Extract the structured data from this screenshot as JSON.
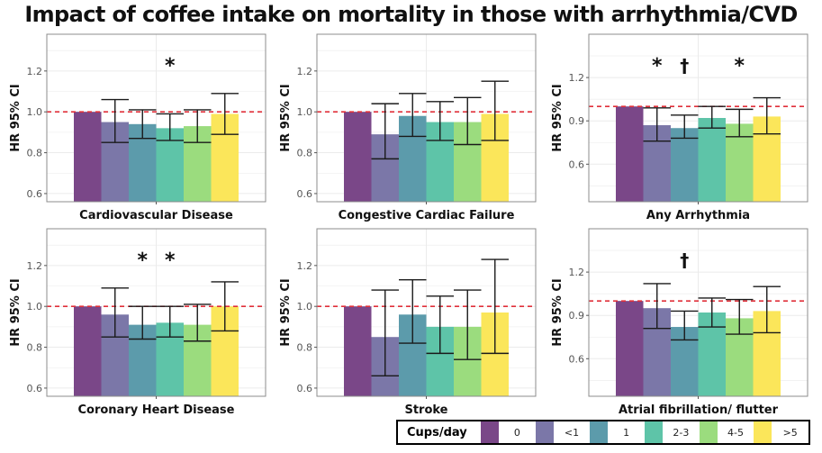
{
  "title": "Impact of coffee intake on mortality in those with arrhythmia/CVD",
  "legend": {
    "title": "Cups/day",
    "items": [
      {
        "label": "0",
        "color": "#7a4788"
      },
      {
        "label": "<1",
        "color": "#7b77a8"
      },
      {
        "label": "1",
        "color": "#5c9bab"
      },
      {
        "label": "2-3",
        "color": "#5ec4a8"
      },
      {
        "label": "4-5",
        "color": "#9bdc7e"
      },
      {
        "label": ">5",
        "color": "#fbe65a"
      }
    ]
  },
  "chart_data": [
    {
      "type": "bar",
      "title": "Cardiovascular Disease",
      "xlabel": "Cardiovascular Disease",
      "ylabel": "HR 95% CI",
      "ylim": [
        0.56,
        1.38
      ],
      "yticks": [
        0.6,
        0.8,
        1.0,
        1.2
      ],
      "ytick_labels": [
        "0.6",
        "0.8",
        "1.0",
        "1.2"
      ],
      "reference_line": 1.0,
      "categories": [
        "0",
        "<1",
        "1",
        "2-3",
        "4-5",
        ">5"
      ],
      "values": [
        1.0,
        0.95,
        0.94,
        0.92,
        0.93,
        0.99
      ],
      "ci_low": [
        null,
        0.85,
        0.87,
        0.86,
        0.85,
        0.89
      ],
      "ci_high": [
        null,
        1.06,
        1.01,
        0.99,
        1.01,
        1.09
      ],
      "annotations": [
        {
          "category": "2-3",
          "symbol": "*"
        }
      ]
    },
    {
      "type": "bar",
      "title": "Congestive Cardiac Failure",
      "xlabel": "Congestive Cardiac Failure",
      "ylabel": "HR 95% CI",
      "ylim": [
        0.56,
        1.38
      ],
      "yticks": [
        0.6,
        0.8,
        1.0,
        1.2
      ],
      "ytick_labels": [
        "0.6",
        "0.8",
        "1.0",
        "1.2"
      ],
      "reference_line": 1.0,
      "categories": [
        "0",
        "<1",
        "1",
        "2-3",
        "4-5",
        ">5"
      ],
      "values": [
        1.0,
        0.89,
        0.98,
        0.95,
        0.95,
        0.99
      ],
      "ci_low": [
        null,
        0.77,
        0.88,
        0.86,
        0.84,
        0.86
      ],
      "ci_high": [
        null,
        1.04,
        1.09,
        1.05,
        1.07,
        1.15
      ],
      "annotations": []
    },
    {
      "type": "bar",
      "title": "Any Arrhythmia",
      "xlabel": "Any Arrhythmia",
      "ylabel": "HR 95% CI",
      "ylim": [
        0.34,
        1.5
      ],
      "yticks": [
        0.6,
        0.9,
        1.2
      ],
      "ytick_labels": [
        "0.6",
        "0.9",
        "1.2"
      ],
      "reference_line": 1.0,
      "categories": [
        "0",
        "<1",
        "1",
        "2-3",
        "4-5",
        ">5"
      ],
      "values": [
        1.0,
        0.87,
        0.85,
        0.92,
        0.88,
        0.93
      ],
      "ci_low": [
        null,
        0.76,
        0.78,
        0.85,
        0.79,
        0.81
      ],
      "ci_high": [
        null,
        0.99,
        0.94,
        1.0,
        0.98,
        1.06
      ],
      "annotations": [
        {
          "category": "<1",
          "symbol": "*"
        },
        {
          "category": "1",
          "symbol": "†"
        },
        {
          "category": "4-5",
          "symbol": "*"
        }
      ]
    },
    {
      "type": "bar",
      "title": "Coronary Heart Disease",
      "xlabel": "Coronary Heart Disease",
      "ylabel": "HR 95% CI",
      "ylim": [
        0.56,
        1.38
      ],
      "yticks": [
        0.6,
        0.8,
        1.0,
        1.2
      ],
      "ytick_labels": [
        "0.6",
        "0.8",
        "1.0",
        "1.2"
      ],
      "reference_line": 1.0,
      "categories": [
        "0",
        "<1",
        "1",
        "2-3",
        "4-5",
        ">5"
      ],
      "values": [
        1.0,
        0.96,
        0.91,
        0.92,
        0.91,
        1.0
      ],
      "ci_low": [
        null,
        0.85,
        0.84,
        0.85,
        0.83,
        0.88
      ],
      "ci_high": [
        null,
        1.09,
        1.0,
        1.0,
        1.01,
        1.12
      ],
      "annotations": [
        {
          "category": "1",
          "symbol": "*"
        },
        {
          "category": "2-3",
          "symbol": "*"
        }
      ]
    },
    {
      "type": "bar",
      "title": "Stroke",
      "xlabel": "Stroke",
      "ylabel": "HR 95% CI",
      "ylim": [
        0.56,
        1.38
      ],
      "yticks": [
        0.6,
        0.8,
        1.0,
        1.2
      ],
      "ytick_labels": [
        "0.6",
        "0.8",
        "1.0",
        "1.2"
      ],
      "reference_line": 1.0,
      "categories": [
        "0",
        "<1",
        "1",
        "2-3",
        "4-5",
        ">5"
      ],
      "values": [
        1.0,
        0.85,
        0.96,
        0.9,
        0.9,
        0.97
      ],
      "ci_low": [
        null,
        0.66,
        0.82,
        0.77,
        0.74,
        0.77
      ],
      "ci_high": [
        null,
        1.08,
        1.13,
        1.05,
        1.08,
        1.23
      ],
      "annotations": []
    },
    {
      "type": "bar",
      "title": "Atrial fibrillation/ flutter",
      "xlabel": "Atrial fibrillation/ flutter",
      "ylabel": "HR 95% CI",
      "ylim": [
        0.34,
        1.5
      ],
      "yticks": [
        0.6,
        0.9,
        1.2
      ],
      "ytick_labels": [
        "0.6",
        "0.9",
        "1.2"
      ],
      "reference_line": 1.0,
      "categories": [
        "0",
        "<1",
        "1",
        "2-3",
        "4-5",
        ">5"
      ],
      "values": [
        1.0,
        0.95,
        0.82,
        0.92,
        0.88,
        0.93
      ],
      "ci_low": [
        null,
        0.81,
        0.73,
        0.82,
        0.77,
        0.78
      ],
      "ci_high": [
        null,
        1.12,
        0.93,
        1.02,
        1.01,
        1.1
      ],
      "annotations": [
        {
          "category": "1",
          "symbol": "†"
        }
      ]
    }
  ]
}
